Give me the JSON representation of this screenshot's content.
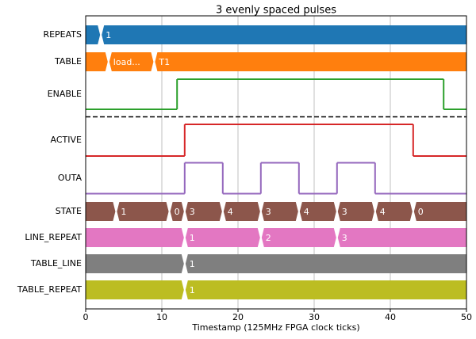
{
  "chart_data": {
    "type": "timing",
    "title": "3 evenly spaced pulses",
    "xlabel": "Timestamp (125MHz FPGA clock ticks)",
    "xlim": [
      0,
      50
    ],
    "xticks": [
      0,
      10,
      20,
      30,
      40,
      50
    ],
    "grid": true,
    "series": [
      {
        "name": "REPEATS",
        "color": "#1f77b4",
        "style": "bus",
        "x": [
          0,
          2
        ],
        "values": [
          null,
          "1"
        ]
      },
      {
        "name": "TABLE",
        "color": "#ff7f0e",
        "style": "bus",
        "x": [
          0,
          3,
          9
        ],
        "values": [
          null,
          "load...",
          "T1"
        ]
      },
      {
        "name": "ENABLE",
        "color": "#2ca02c",
        "style": "line",
        "x": [
          0,
          12,
          47
        ],
        "values": [
          0,
          1,
          0
        ],
        "dashed_line_below": true
      },
      {
        "name": "ACTIVE",
        "color": "#d62728",
        "style": "line",
        "x": [
          0,
          13,
          43
        ],
        "values": [
          0,
          1,
          0
        ]
      },
      {
        "name": "OUTA",
        "color": "#9467bd",
        "style": "line",
        "x": [
          0,
          13,
          18,
          23,
          28,
          33,
          38
        ],
        "values": [
          0,
          1,
          0,
          1,
          0,
          1,
          0
        ]
      },
      {
        "name": "STATE",
        "color": "#8c564b",
        "style": "bus",
        "x": [
          0,
          4,
          11,
          13,
          18,
          23,
          28,
          33,
          38,
          43
        ],
        "values": [
          null,
          "1",
          "0",
          "3",
          "4",
          "3",
          "4",
          "3",
          "4",
          "0"
        ]
      },
      {
        "name": "LINE_REPEAT",
        "color": "#e377c2",
        "style": "bus",
        "x": [
          0,
          13,
          23,
          33
        ],
        "values": [
          null,
          "1",
          "2",
          "3"
        ]
      },
      {
        "name": "TABLE_LINE",
        "color": "#7f7f7f",
        "style": "bus",
        "x": [
          0,
          13
        ],
        "values": [
          null,
          "1"
        ]
      },
      {
        "name": "TABLE_REPEAT",
        "color": "#bcbd22",
        "style": "bus",
        "x": [
          0,
          13
        ],
        "values": [
          null,
          "1"
        ]
      }
    ]
  }
}
